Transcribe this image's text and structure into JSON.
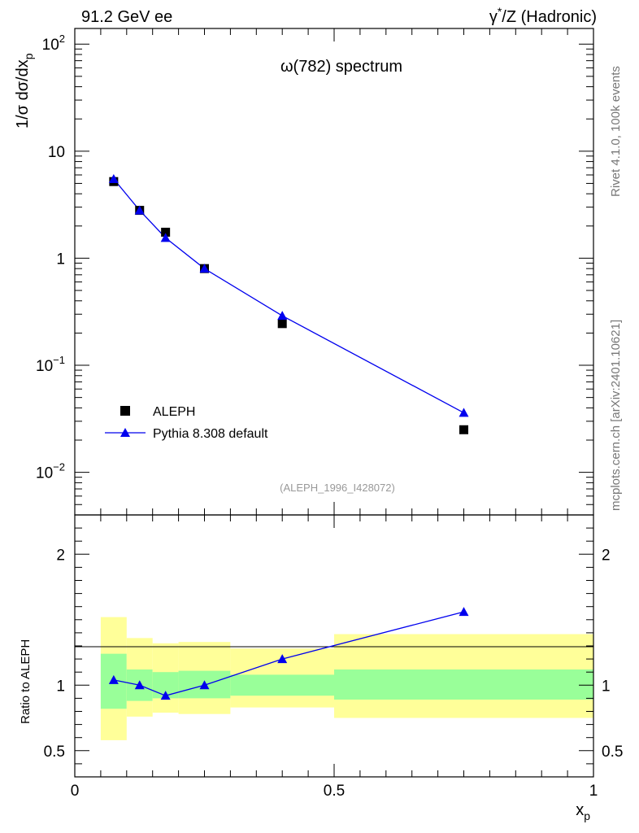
{
  "header": {
    "energy_label": "91.2 GeV ee",
    "process_label_base": "γ",
    "process_label_sup": "*",
    "process_label_rest": "/Z (Hadronic)"
  },
  "side_text": {
    "rivet": "Rivet 4.1.0,  100k events",
    "mcplots": "mcplots.cern.ch [arXiv:2401.10621]"
  },
  "colors": {
    "data": "#000000",
    "mc": "#0000ee",
    "band_inner": "#99ff99",
    "band_outer": "#ffff99"
  },
  "chart_data": [
    {
      "type": "scatter",
      "title": "ω(782) spectrum",
      "analysis_tag": "(ALEPH_1996_I428072)",
      "ylabel_main": "1/σ  dσ/dx",
      "ylabel_sub": "p",
      "yscale": "log",
      "ylim": [
        0.004,
        140
      ],
      "xlim": [
        0,
        1
      ],
      "y_ticks": [
        {
          "value": 0.01,
          "label_base": "10",
          "label_exp": "−2"
        },
        {
          "value": 0.1,
          "label_base": "10",
          "label_exp": "−1"
        },
        {
          "value": 1,
          "label_base": "1",
          "label_exp": ""
        },
        {
          "value": 10,
          "label_base": "10",
          "label_exp": ""
        },
        {
          "value": 100,
          "label_base": "10",
          "label_exp": "2"
        }
      ],
      "legend": {
        "position": "lower-left",
        "entries": [
          "ALEPH",
          "Pythia 8.308 default"
        ]
      },
      "series": [
        {
          "name": "ALEPH",
          "marker": "square",
          "x": [
            0.075,
            0.125,
            0.175,
            0.25,
            0.4,
            0.75
          ],
          "y": [
            5.2,
            2.8,
            1.75,
            0.8,
            0.245,
            0.025
          ]
        },
        {
          "name": "Pythia 8.308 default",
          "marker": "triangle",
          "x": [
            0.075,
            0.125,
            0.175,
            0.25,
            0.4,
            0.75
          ],
          "y": [
            5.5,
            2.8,
            1.55,
            0.8,
            0.29,
            0.036
          ]
        }
      ]
    },
    {
      "type": "line",
      "ylabel": "Ratio to ALEPH",
      "xlabel": "x",
      "xlabel_sub": "p",
      "ylim": [
        0.3,
        2.3
      ],
      "xlim": [
        0,
        1
      ],
      "x_ticks": [
        {
          "value": 0,
          "label": "0"
        },
        {
          "value": 0.5,
          "label": "0.5"
        },
        {
          "value": 1,
          "label": "1"
        }
      ],
      "y_ticks": [
        {
          "value": 0.5,
          "label": "0.5"
        },
        {
          "value": 1,
          "label": "1"
        },
        {
          "value": 2,
          "label": "2"
        }
      ],
      "bands": [
        {
          "x0": 0.05,
          "x1": 0.1,
          "inner": [
            0.82,
            1.24
          ],
          "outer": [
            0.58,
            1.52
          ]
        },
        {
          "x0": 0.1,
          "x1": 0.15,
          "inner": [
            0.88,
            1.12
          ],
          "outer": [
            0.76,
            1.36
          ]
        },
        {
          "x0": 0.15,
          "x1": 0.2,
          "inner": [
            0.9,
            1.1
          ],
          "outer": [
            0.79,
            1.32
          ]
        },
        {
          "x0": 0.2,
          "x1": 0.3,
          "inner": [
            0.9,
            1.11
          ],
          "outer": [
            0.78,
            1.33
          ]
        },
        {
          "x0": 0.3,
          "x1": 0.5,
          "inner": [
            0.92,
            1.08
          ],
          "outer": [
            0.83,
            1.28
          ]
        },
        {
          "x0": 0.5,
          "x1": 1.0,
          "inner": [
            0.89,
            1.12
          ],
          "outer": [
            0.75,
            1.39
          ]
        }
      ],
      "series": [
        {
          "name": "Pythia 8.308 default",
          "x": [
            0.075,
            0.125,
            0.175,
            0.25,
            0.4,
            0.75
          ],
          "y": [
            1.04,
            1.0,
            0.92,
            1.0,
            1.2,
            1.56
          ]
        }
      ]
    }
  ]
}
